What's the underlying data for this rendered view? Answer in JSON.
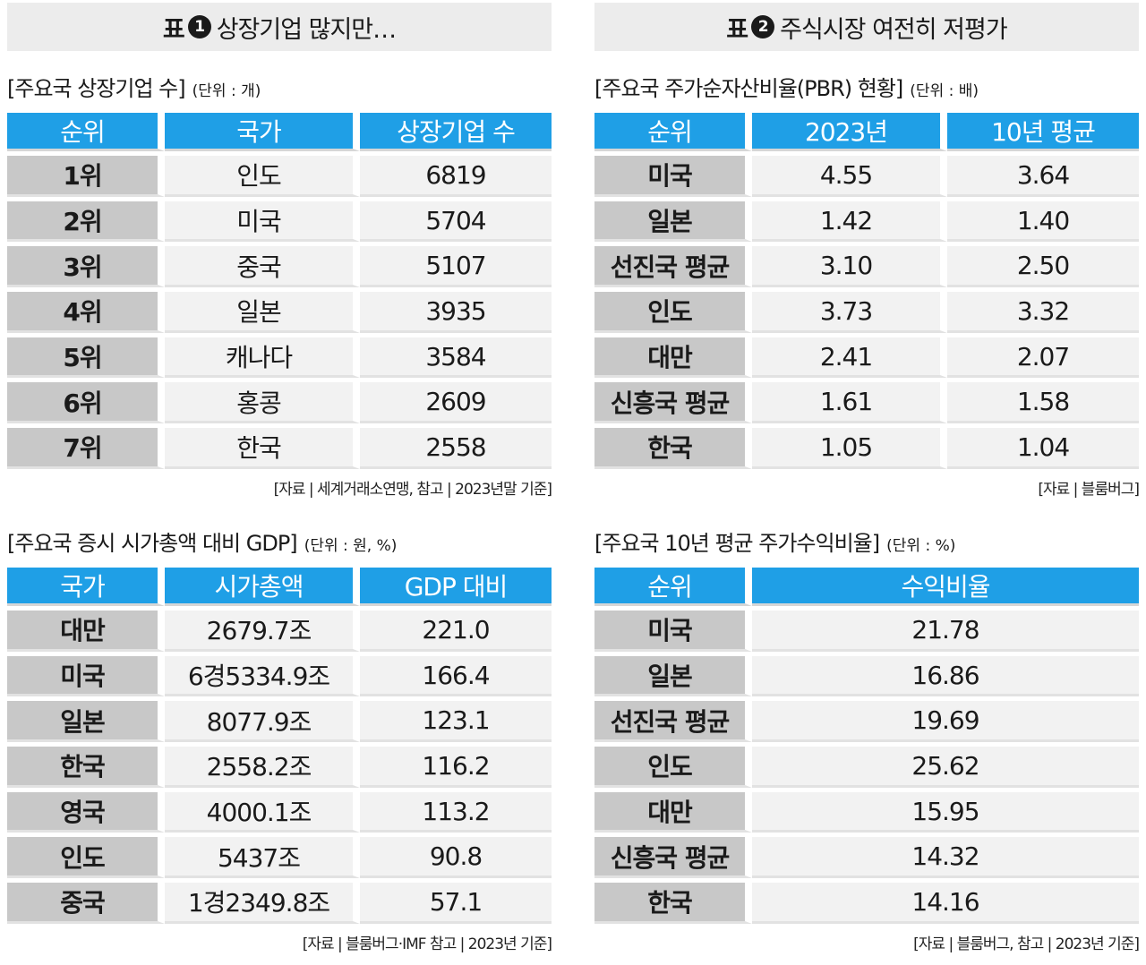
{
  "table1": {
    "label": "표",
    "number": "1",
    "title": "상장기업 많지만…",
    "listed": {
      "caption": "[주요국 상장기업 수]",
      "unit": "(단위 : 개)",
      "headers": [
        "순위",
        "국가",
        "상장기업 수"
      ],
      "rows": [
        [
          "1위",
          "인도",
          "6819"
        ],
        [
          "2위",
          "미국",
          "5704"
        ],
        [
          "3위",
          "중국",
          "5107"
        ],
        [
          "4위",
          "일본",
          "3935"
        ],
        [
          "5위",
          "캐나다",
          "3584"
        ],
        [
          "6위",
          "홍콩",
          "2609"
        ],
        [
          "7위",
          "한국",
          "2558"
        ]
      ],
      "source": "[자료 | 세계거래소연맹, 참고 | 2023년말 기준]"
    },
    "gdp": {
      "caption": "[주요국 증시 시가총액 대비 GDP]",
      "unit": "(단위 : 원, %)",
      "headers": [
        "국가",
        "시가총액",
        "GDP 대비"
      ],
      "rows": [
        [
          "대만",
          "2679.7조",
          "221.0"
        ],
        [
          "미국",
          "6경5334.9조",
          "166.4"
        ],
        [
          "일본",
          "8077.9조",
          "123.1"
        ],
        [
          "한국",
          "2558.2조",
          "116.2"
        ],
        [
          "영국",
          "4000.1조",
          "113.2"
        ],
        [
          "인도",
          "5437조",
          "90.8"
        ],
        [
          "중국",
          "1경2349.8조",
          "57.1"
        ]
      ],
      "source": "[자료 | 블룸버그·IMF 참고 | 2023년 기준]"
    }
  },
  "table2": {
    "label": "표",
    "number": "2",
    "title": "주식시장 여전히 저평가",
    "pbr": {
      "caption": "[주요국 주가순자산비율(PBR) 현황]",
      "unit": "(단위 : 배)",
      "headers": [
        "순위",
        "2023년",
        "10년 평균"
      ],
      "rows": [
        [
          "미국",
          "4.55",
          "3.64"
        ],
        [
          "일본",
          "1.42",
          "1.40"
        ],
        [
          "선진국 평균",
          "3.10",
          "2.50"
        ],
        [
          "인도",
          "3.73",
          "3.32"
        ],
        [
          "대만",
          "2.41",
          "2.07"
        ],
        [
          "신흥국 평균",
          "1.61",
          "1.58"
        ],
        [
          "한국",
          "1.05",
          "1.04"
        ]
      ],
      "source": "[자료 | 블룸버그]"
    },
    "per": {
      "caption": "[주요국 10년 평균 주가수익비율]",
      "unit": "(단위 : %)",
      "headers": [
        "순위",
        "수익비율"
      ],
      "rows": [
        [
          "미국",
          "21.78"
        ],
        [
          "일본",
          "16.86"
        ],
        [
          "선진국 평균",
          "19.69"
        ],
        [
          "인도",
          "25.62"
        ],
        [
          "대만",
          "15.95"
        ],
        [
          "신흥국 평균",
          "14.32"
        ],
        [
          "한국",
          "14.16"
        ]
      ],
      "source": "[자료 | 블룸버그, 참고 | 2023년 기준]"
    }
  }
}
